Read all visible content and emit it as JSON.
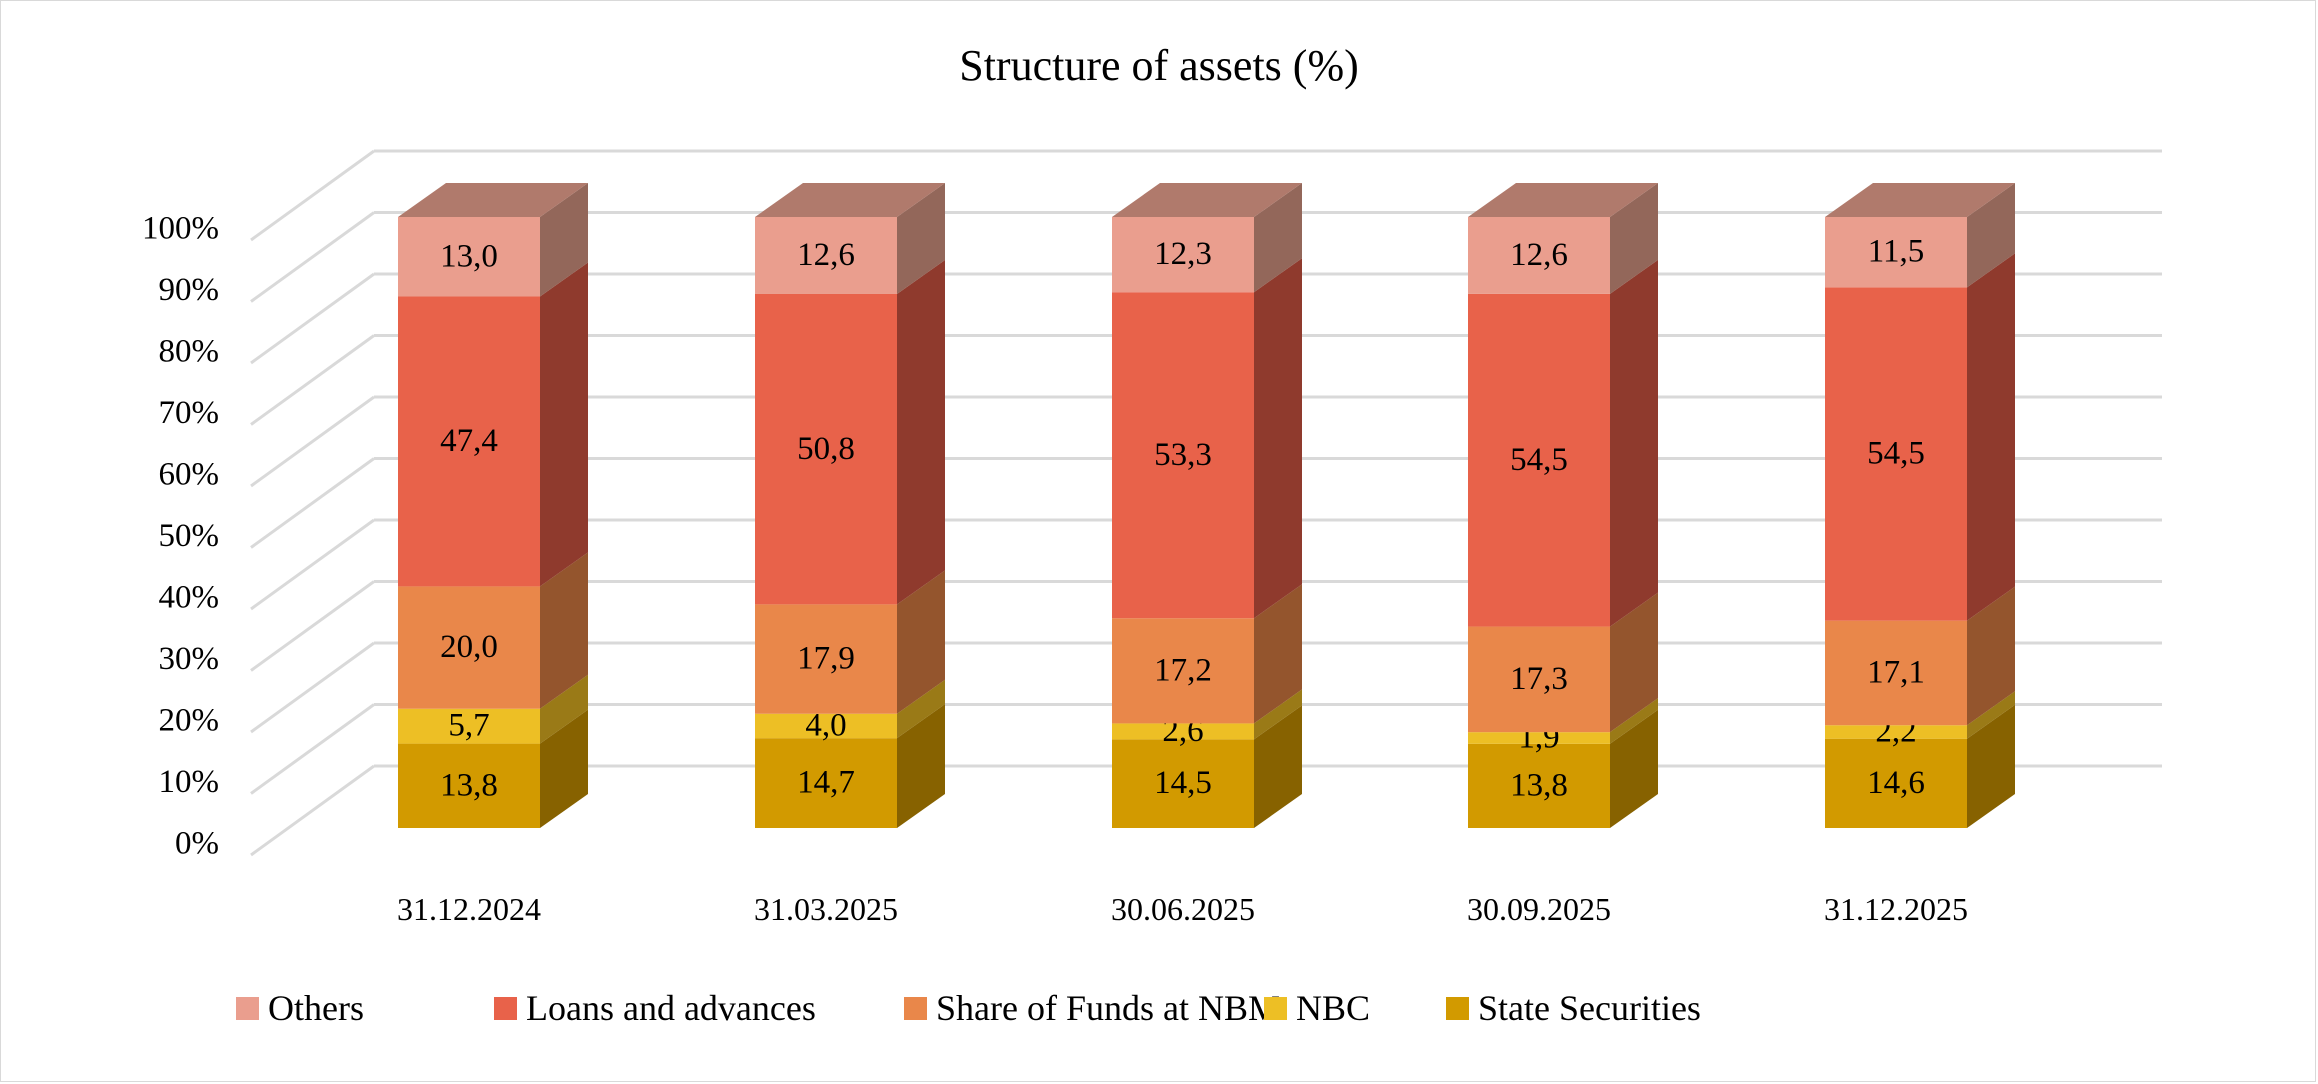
{
  "chart_data": {
    "type": "bar",
    "stacked": true,
    "style": "3d",
    "title": "Structure of assets (%)",
    "xlabel": "",
    "ylabel": "",
    "ylim": [
      0,
      100
    ],
    "yticks": [
      "0%",
      "10%",
      "20%",
      "30%",
      "40%",
      "50%",
      "60%",
      "70%",
      "80%",
      "90%",
      "100%"
    ],
    "grid": true,
    "legend_position": "bottom",
    "categories": [
      "31.12.2024",
      "31.03.2025",
      "30.06.2025",
      "30.09.2025",
      "31.12.2025"
    ],
    "series": [
      {
        "name": "State Securities",
        "values": [
          "13,8",
          "14,7",
          "14,5",
          "13,8",
          "14,6"
        ],
        "color": "#D29A00",
        "side": "#876200"
      },
      {
        "name": "NBC",
        "values": [
          "5,7",
          "4,0",
          "2,6",
          "1,9",
          "2,2"
        ],
        "color": "#EDBF25",
        "side": "#9A7A17"
      },
      {
        "name": "Share of Funds at NBM",
        "values": [
          "20,0",
          "17,9",
          "17,2",
          "17,3",
          "17,1"
        ],
        "color": "#E9874A",
        "side": "#94552D"
      },
      {
        "name": "Loans and advances",
        "values": [
          "47,4",
          "50,8",
          "53,3",
          "54,5",
          "54,5"
        ],
        "color": "#E8624A",
        "side": "#8F3A2D"
      },
      {
        "name": "Others",
        "values": [
          "13,0",
          "12,6",
          "12,3",
          "12,6",
          "11,5"
        ],
        "color": "#EA9E8E",
        "side": "#93675A",
        "top": "#B07A6C"
      }
    ],
    "legend_order": [
      "Others",
      "Loans and advances",
      "Share of Funds at NBM",
      "NBC",
      "State Securities"
    ]
  }
}
